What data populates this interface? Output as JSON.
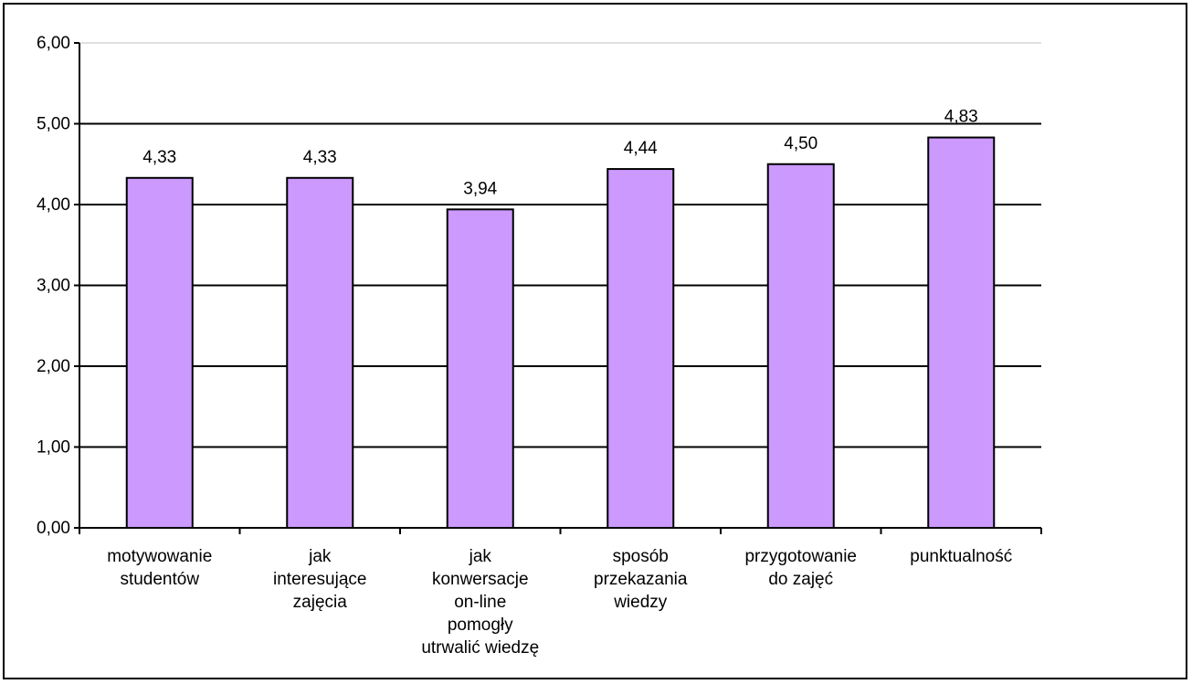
{
  "chart_data": {
    "type": "bar",
    "title": "",
    "xlabel": "",
    "ylabel": "",
    "ylim": [
      0,
      6
    ],
    "y_ticks": [
      "0,00",
      "1,00",
      "2,00",
      "3,00",
      "4,00",
      "5,00",
      "6,00"
    ],
    "grid": true,
    "categories": [
      [
        "motywowanie",
        "studentów"
      ],
      [
        "jak",
        "interesujące",
        "zajęcia"
      ],
      [
        "jak",
        "konwersacje",
        "on-line",
        "pomogły",
        "utrwalić wiedzę"
      ],
      [
        "sposób",
        "przekazania",
        "wiedzy"
      ],
      [
        "przygotowanie",
        "do zajęć"
      ],
      [
        "punktualność"
      ]
    ],
    "values": [
      4.33,
      4.33,
      3.94,
      4.44,
      4.5,
      4.83
    ],
    "data_labels": [
      "4,33",
      "4,33",
      "3,94",
      "4,44",
      "4,50",
      "4,83"
    ],
    "colors": {
      "bar_fill": "#CC99FF",
      "bar_stroke": "#000000",
      "grid": "#000000",
      "top_grid": "#C0C0C0"
    }
  }
}
